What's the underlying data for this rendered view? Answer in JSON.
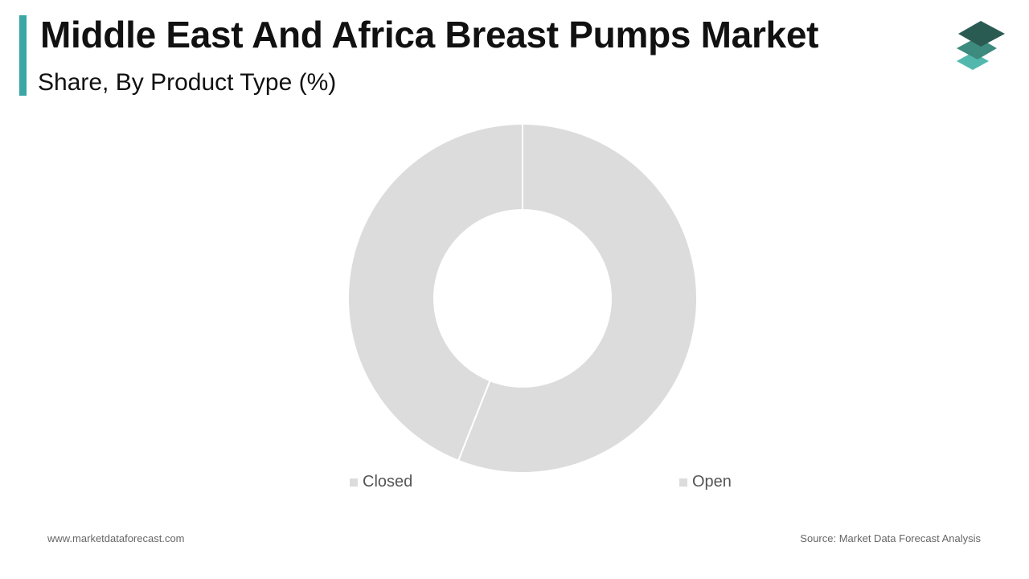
{
  "header": {
    "title": "Middle East And Africa Breast Pumps Market",
    "subtitle": "Share, By Product Type (%)",
    "accent_color": "#3aa6a6"
  },
  "logo": {
    "icon": "stacked-layers-icon",
    "colors": [
      "#2a5b53",
      "#3d8a7e",
      "#52b8ad"
    ]
  },
  "chart_data": {
    "type": "pie",
    "donut": true,
    "title": "",
    "categories": [
      "Closed",
      "Open"
    ],
    "values": [
      44,
      56
    ],
    "colors": [
      "#dcdcdc",
      "#dcdcdc"
    ],
    "legend_position": "bottom"
  },
  "footer": {
    "website": "www.marketdataforecast.com",
    "source": "Source: Market Data Forecast Analysis"
  }
}
